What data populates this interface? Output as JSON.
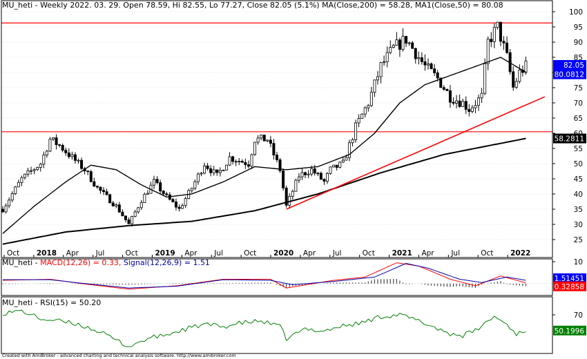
{
  "chart_data": [
    {
      "panel": "price",
      "type": "candlestick",
      "title": "MU_heti - Weekly 2022. 03. 29. Open 78.59, Hi 82.55, Lo 77.27, Close 82.05 (5.1%) MA(Close,200) = 58.28, MA1(Close,50) = 80.08",
      "ylim": [
        22,
        101
      ],
      "yticks": [
        25,
        30,
        35,
        40,
        45,
        50,
        55,
        60,
        65,
        70,
        75,
        80,
        85,
        90,
        95,
        100
      ],
      "x_labels": [
        "Oct",
        "2018",
        "Apr",
        "Jul",
        "Oct",
        "2019",
        "Apr",
        "Jul",
        "Oct",
        "2020",
        "Apr",
        "Jul",
        "Oct",
        "2021",
        "Apr",
        "Jul",
        "Oct",
        "2022"
      ],
      "x_bold": [
        "2018",
        "2019",
        "2020",
        "2021",
        "2022"
      ],
      "close_anchors": [
        [
          0,
          35
        ],
        [
          6,
          45
        ],
        [
          12,
          50
        ],
        [
          15,
          58
        ],
        [
          18,
          56
        ],
        [
          22,
          52
        ],
        [
          26,
          48
        ],
        [
          30,
          42
        ],
        [
          34,
          38
        ],
        [
          36,
          36
        ],
        [
          40,
          30
        ],
        [
          44,
          38
        ],
        [
          48,
          44
        ],
        [
          52,
          39
        ],
        [
          56,
          35
        ],
        [
          60,
          42
        ],
        [
          64,
          50
        ],
        [
          68,
          46
        ],
        [
          72,
          52
        ],
        [
          78,
          50
        ],
        [
          80,
          58
        ],
        [
          84,
          58
        ],
        [
          88,
          48
        ],
        [
          90,
          36
        ],
        [
          94,
          46
        ],
        [
          98,
          48
        ],
        [
          102,
          44
        ],
        [
          104,
          48
        ],
        [
          108,
          50
        ],
        [
          112,
          62
        ],
        [
          116,
          70
        ],
        [
          120,
          82
        ],
        [
          124,
          88
        ],
        [
          128,
          91
        ],
        [
          130,
          88
        ],
        [
          134,
          82
        ],
        [
          138,
          78
        ],
        [
          142,
          72
        ],
        [
          146,
          70
        ],
        [
          148,
          68
        ],
        [
          152,
          72
        ],
        [
          154,
          90
        ],
        [
          157,
          95
        ],
        [
          160,
          85
        ],
        [
          162,
          75
        ],
        [
          164,
          80
        ],
        [
          166,
          82
        ]
      ],
      "ma200": {
        "name": "MA(Close,200)",
        "last": 58.28,
        "color": "#000000",
        "points": [
          [
            0,
            23.5
          ],
          [
            20,
            27.5
          ],
          [
            40,
            29.6
          ],
          [
            60,
            31
          ],
          [
            80,
            34.5
          ],
          [
            100,
            40
          ],
          [
            120,
            47
          ],
          [
            140,
            53
          ],
          [
            166,
            58.3
          ]
        ]
      },
      "ma50": {
        "name": "MA1(Close,50)",
        "last": 80.08,
        "color": "#000000",
        "points": [
          [
            0,
            27
          ],
          [
            10,
            36
          ],
          [
            20,
            44
          ],
          [
            28,
            49.5
          ],
          [
            36,
            48
          ],
          [
            44,
            43
          ],
          [
            52,
            39
          ],
          [
            60,
            40
          ],
          [
            70,
            44
          ],
          [
            80,
            49
          ],
          [
            90,
            48
          ],
          [
            100,
            49
          ],
          [
            110,
            53
          ],
          [
            118,
            60
          ],
          [
            126,
            70
          ],
          [
            134,
            76
          ],
          [
            142,
            79
          ],
          [
            150,
            82
          ],
          [
            158,
            85
          ],
          [
            166,
            80.08
          ]
        ]
      },
      "h_lines": [
        {
          "value": 96.3,
          "color": "#ff0000"
        },
        {
          "value": 60.5,
          "color": "#ff0000"
        }
      ],
      "trend_line": {
        "color": "#ff0000",
        "from": [
          90,
          35
        ],
        "to": [
          172,
          72
        ]
      },
      "last_close": {
        "value": 82.05,
        "label": "82.05",
        "color": "#0000ff"
      },
      "ma50_label": {
        "value": 80.0812,
        "label": "80.0812",
        "color": "#0000ff"
      },
      "ma200_label": {
        "value": 58.2811,
        "label": "58.2811",
        "color": "#000000"
      }
    },
    {
      "panel": "macd",
      "type": "line",
      "title": "MU_heti - MACD(12,26) = 0.33, Signal(12,26,9) = 1.51",
      "ylim": [
        -4,
        12
      ],
      "yticks": [
        10
      ],
      "macd_anchors": [
        [
          0,
          1.5
        ],
        [
          15,
          2
        ],
        [
          25,
          0
        ],
        [
          40,
          -2.5
        ],
        [
          55,
          -1
        ],
        [
          70,
          2
        ],
        [
          85,
          2
        ],
        [
          90,
          -2
        ],
        [
          105,
          1.5
        ],
        [
          115,
          3
        ],
        [
          125,
          9.5
        ],
        [
          132,
          8
        ],
        [
          142,
          2
        ],
        [
          150,
          -1
        ],
        [
          158,
          3.5
        ],
        [
          166,
          0.33
        ]
      ],
      "signal_anchors": [
        [
          0,
          1.8
        ],
        [
          15,
          1.8
        ],
        [
          25,
          0.2
        ],
        [
          40,
          -2
        ],
        [
          55,
          -1.2
        ],
        [
          70,
          1.8
        ],
        [
          85,
          1.5
        ],
        [
          92,
          -0.5
        ],
        [
          105,
          1
        ],
        [
          118,
          3
        ],
        [
          128,
          9.2
        ],
        [
          135,
          7
        ],
        [
          145,
          2
        ],
        [
          152,
          0.5
        ],
        [
          160,
          3
        ],
        [
          166,
          1.51
        ]
      ],
      "macd_color": "#ff0000",
      "signal_color": "#0000aa",
      "labels": [
        {
          "value": 1.5145,
          "label": "1.51451",
          "color": "#0000ff"
        },
        {
          "value": 0.3285,
          "label": "0.32858",
          "color": "#ff0000"
        }
      ]
    },
    {
      "panel": "rsi",
      "type": "line",
      "title": "MU_heti - RSI(15) = 50.20",
      "ylim": [
        20,
        85
      ],
      "yticks": [
        70
      ],
      "color": "#008000",
      "rsi_anchors": [
        [
          0,
          72
        ],
        [
          6,
          75
        ],
        [
          12,
          65
        ],
        [
          18,
          62
        ],
        [
          24,
          58
        ],
        [
          30,
          50
        ],
        [
          36,
          38
        ],
        [
          40,
          30
        ],
        [
          46,
          40
        ],
        [
          52,
          45
        ],
        [
          58,
          52
        ],
        [
          64,
          58
        ],
        [
          70,
          55
        ],
        [
          76,
          60
        ],
        [
          82,
          62
        ],
        [
          88,
          55
        ],
        [
          90,
          40
        ],
        [
          96,
          52
        ],
        [
          102,
          50
        ],
        [
          108,
          56
        ],
        [
          114,
          60
        ],
        [
          120,
          68
        ],
        [
          126,
          70
        ],
        [
          130,
          65
        ],
        [
          136,
          56
        ],
        [
          142,
          46
        ],
        [
          146,
          44
        ],
        [
          150,
          50
        ],
        [
          156,
          68
        ],
        [
          160,
          58
        ],
        [
          163,
          46
        ],
        [
          166,
          50.2
        ]
      ],
      "label": {
        "value": 50.1996,
        "label": "50.1996",
        "color": "#008000"
      }
    }
  ],
  "footer": "Created with AmiBroker - advanced charting and technical analysis software. http://www.amibroker.com"
}
